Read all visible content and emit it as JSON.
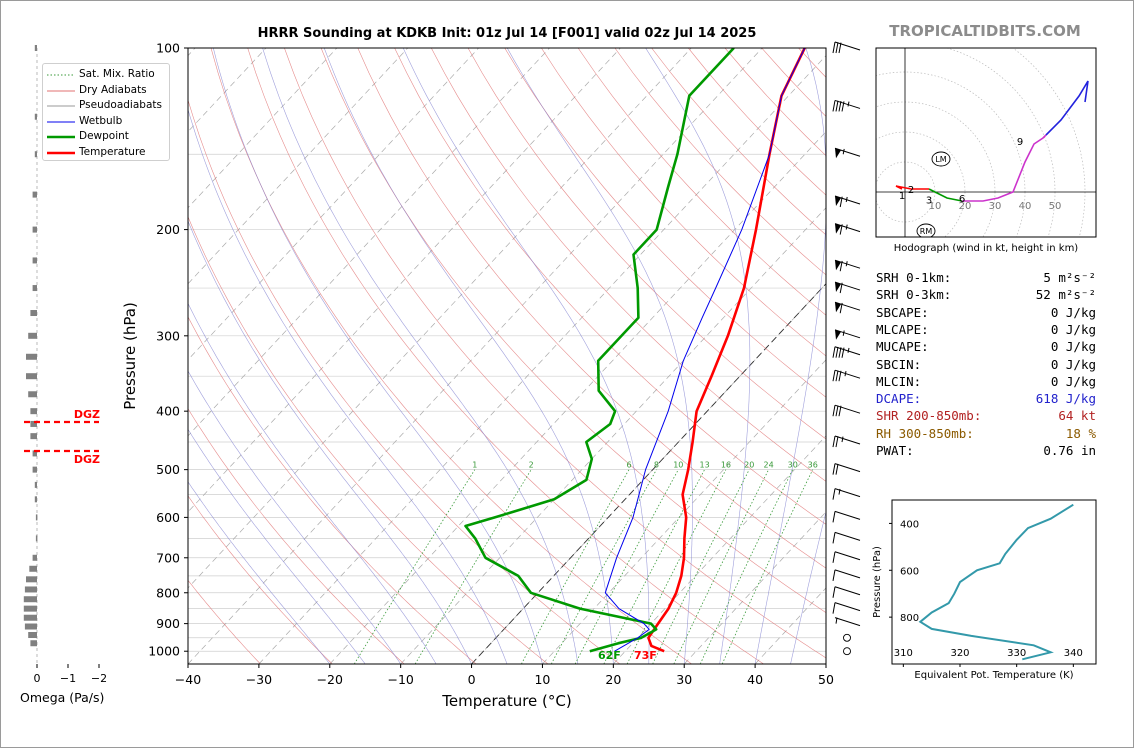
{
  "title": "HRRR Sounding at KDKB Init: 01z Jul 14 [F001] valid 02z Jul 14 2025",
  "brand": "TROPICALTIDBITS.COM",
  "colors": {
    "temperature": "#ff0000",
    "dewpoint": "#009900",
    "wetbulb": "#0000ee",
    "dry_adiabat": "#e07070",
    "pseudoadiabat": "#8080d0",
    "mixing_ratio": "#3a9a3a",
    "theta_e": "#3399aa",
    "hodo_low": "#ff0000",
    "hodo_mid": "#009900",
    "hodo_upper": "#cc33cc",
    "hodo_top": "#2222dd",
    "dgz": "#ff0000",
    "omega": "#808080"
  },
  "legend": [
    {
      "label": "Sat. Mix. Ratio",
      "style": "dotted",
      "color": "#3a9a3a"
    },
    {
      "label": "Dry Adiabats",
      "style": "thin",
      "color": "#e07070"
    },
    {
      "label": "Pseudoadiabats",
      "style": "thin",
      "color": "#9a9a9a"
    },
    {
      "label": "Wetbulb",
      "style": "thin",
      "color": "#0000ee"
    },
    {
      "label": "Dewpoint",
      "style": "thick",
      "color": "#009900"
    },
    {
      "label": "Temperature",
      "style": "thick",
      "color": "#ff0000"
    }
  ],
  "indices": [
    {
      "key": "SRH 0-1km:",
      "value": "5 m²s⁻²",
      "color": "#000000"
    },
    {
      "key": "SRH 0-3km:",
      "value": "52 m²s⁻²",
      "color": "#000000"
    },
    {
      "key": "SBCAPE:",
      "value": "0 J/kg",
      "color": "#000000"
    },
    {
      "key": "MLCAPE:",
      "value": "0 J/kg",
      "color": "#000000"
    },
    {
      "key": "MUCAPE:",
      "value": "0 J/kg",
      "color": "#000000"
    },
    {
      "key": "SBCIN:",
      "value": "0 J/kg",
      "color": "#000000"
    },
    {
      "key": "MLCIN:",
      "value": "0 J/kg",
      "color": "#000000"
    },
    {
      "key": "DCAPE:",
      "value": "618 J/kg",
      "color": "#2222cc"
    },
    {
      "key": "SHR 200-850mb:",
      "value": "64 kt",
      "color": "#b22222"
    },
    {
      "key": "RH 300-850mb:",
      "value": "18 %",
      "color": "#8b5a00"
    },
    {
      "key": "PWAT:",
      "value": "0.76 in",
      "color": "#000000"
    }
  ],
  "omega": {
    "xlabel": "Omega (Pa/s)",
    "ticks": [
      "0",
      "−1",
      "−2"
    ],
    "dgz_label": "DGZ"
  },
  "chart_data": [
    {
      "type": "skew-t",
      "title": "HRRR Sounding at KDKB Init: 01z Jul 14 [F001] valid 02z Jul 14 2025",
      "xlabel": "Temperature (°C)",
      "ylabel": "Pressure (hPa)",
      "xlim": [
        -40,
        50
      ],
      "ylim": [
        1050,
        100
      ],
      "x_ticks": [
        "−40",
        "−30",
        "−20",
        "−10",
        "0",
        "10",
        "20",
        "30",
        "40",
        "50"
      ],
      "y_ticks": [
        "100",
        "200",
        "300",
        "400",
        "500",
        "600",
        "700",
        "800",
        "900",
        "1000"
      ],
      "mixing_ratio_labels": [
        "1",
        "2",
        "6",
        "8",
        "10",
        "13",
        "16",
        "20",
        "24",
        "30",
        "36"
      ],
      "surface_labels": {
        "temperature": "73F",
        "dewpoint": "62F"
      },
      "series": [
        {
          "name": "Temperature",
          "points": [
            [
              1000,
              25.5
            ],
            [
              980,
              23
            ],
            [
              950,
              21.5
            ],
            [
              900,
              21
            ],
            [
              850,
              20.5
            ],
            [
              800,
              19.5
            ],
            [
              750,
              18
            ],
            [
              700,
              16
            ],
            [
              650,
              13.5
            ],
            [
              600,
              11
            ],
            [
              550,
              7.5
            ],
            [
              500,
              5
            ],
            [
              450,
              2
            ],
            [
              400,
              -1.5
            ],
            [
              350,
              -4
            ],
            [
              300,
              -7
            ],
            [
              250,
              -11
            ],
            [
              200,
              -17
            ],
            [
              150,
              -25
            ],
            [
              120,
              -31
            ],
            [
              100,
              -34
            ]
          ]
        },
        {
          "name": "Dewpoint",
          "points": [
            [
              1000,
              15
            ],
            [
              970,
              18
            ],
            [
              950,
              20.5
            ],
            [
              920,
              21.5
            ],
            [
              900,
              20
            ],
            [
              850,
              8
            ],
            [
              800,
              -1
            ],
            [
              750,
              -5
            ],
            [
              700,
              -12
            ],
            [
              650,
              -16
            ],
            [
              620,
              -19
            ],
            [
              600,
              -16
            ],
            [
              560,
              -10
            ],
            [
              520,
              -8
            ],
            [
              480,
              -10
            ],
            [
              450,
              -13
            ],
            [
              420,
              -12
            ],
            [
              400,
              -13
            ],
            [
              370,
              -18
            ],
            [
              330,
              -22
            ],
            [
              280,
              -22
            ],
            [
              250,
              -26
            ],
            [
              220,
              -31
            ],
            [
              200,
              -31
            ],
            [
              170,
              -35
            ],
            [
              150,
              -38
            ],
            [
              120,
              -44
            ],
            [
              100,
              -44
            ]
          ]
        },
        {
          "name": "Wetbulb",
          "points": [
            [
              1000,
              18.5
            ],
            [
              950,
              20
            ],
            [
              920,
              20.5
            ],
            [
              900,
              19
            ],
            [
              850,
              13.5
            ],
            [
              800,
              9.5
            ],
            [
              700,
              6.5
            ],
            [
              600,
              3.5
            ],
            [
              500,
              -1
            ],
            [
              400,
              -5.5
            ],
            [
              330,
              -10
            ],
            [
              280,
              -13
            ],
            [
              250,
              -15
            ],
            [
              200,
              -19
            ],
            [
              150,
              -25
            ],
            [
              120,
              -31
            ],
            [
              100,
              -34
            ]
          ]
        }
      ],
      "wind_barbs_kt": [
        {
          "p": 1000,
          "speed": 0
        },
        {
          "p": 950,
          "speed": 0
        },
        {
          "p": 900,
          "speed": 5
        },
        {
          "p": 850,
          "speed": 10
        },
        {
          "p": 800,
          "speed": 10
        },
        {
          "p": 750,
          "speed": 10
        },
        {
          "p": 700,
          "speed": 10
        },
        {
          "p": 650,
          "speed": 10
        },
        {
          "p": 600,
          "speed": 10
        },
        {
          "p": 550,
          "speed": 15
        },
        {
          "p": 500,
          "speed": 20
        },
        {
          "p": 450,
          "speed": 25
        },
        {
          "p": 400,
          "speed": 30
        },
        {
          "p": 350,
          "speed": 35
        },
        {
          "p": 320,
          "speed": 45
        },
        {
          "p": 300,
          "speed": 55
        },
        {
          "p": 270,
          "speed": 60
        },
        {
          "p": 250,
          "speed": 60
        },
        {
          "p": 230,
          "speed": 65
        },
        {
          "p": 200,
          "speed": 65
        },
        {
          "p": 180,
          "speed": 65
        },
        {
          "p": 150,
          "speed": 55
        },
        {
          "p": 125,
          "speed": 45
        },
        {
          "p": 100,
          "speed": 30
        }
      ]
    },
    {
      "type": "line",
      "title": "Hodograph (wind in kt, height in km)",
      "ring_labels": [
        "10",
        "20",
        "30",
        "40",
        "50"
      ],
      "height_labels": [
        "1",
        "2",
        "3",
        "6",
        "9"
      ],
      "markers": [
        "LM",
        "RM"
      ],
      "series": [
        {
          "name": "0-3 km",
          "points": [
            [
              -1,
              1
            ],
            [
              -3,
              2
            ],
            [
              2,
              1
            ],
            [
              8,
              1
            ]
          ]
        },
        {
          "name": "3-6 km",
          "points": [
            [
              8,
              1
            ],
            [
              14,
              -2
            ],
            [
              19,
              -3
            ]
          ]
        },
        {
          "name": "6-9 km",
          "points": [
            [
              19,
              -3
            ],
            [
              26,
              -3
            ],
            [
              31,
              -2
            ],
            [
              36,
              0
            ],
            [
              40,
              10
            ],
            [
              43,
              16
            ],
            [
              46,
              18
            ],
            [
              47,
              19
            ]
          ]
        },
        {
          "name": "9+ km",
          "points": [
            [
              47,
              19
            ],
            [
              52,
              24
            ],
            [
              58,
              32
            ],
            [
              61,
              37
            ],
            [
              60,
              30
            ]
          ]
        }
      ]
    },
    {
      "type": "line",
      "xlabel": "Equivalent Pot. Temperature (K)",
      "ylabel": "Pressure (hPa)",
      "xlim": [
        308,
        344
      ],
      "ylim": [
        1000,
        300
      ],
      "x_ticks": [
        "310",
        "320",
        "330",
        "340"
      ],
      "y_ticks": [
        "400",
        "600",
        "800"
      ],
      "series": [
        {
          "name": "Equivalent Pot. Temperature",
          "points": [
            [
              980,
              331
            ],
            [
              965,
              333.5
            ],
            [
              950,
              336
            ],
            [
              920,
              333
            ],
            [
              880,
              322
            ],
            [
              850,
              315
            ],
            [
              820,
              313
            ],
            [
              780,
              315
            ],
            [
              740,
              318
            ],
            [
              700,
              319
            ],
            [
              650,
              320
            ],
            [
              600,
              323
            ],
            [
              570,
              327
            ],
            [
              530,
              328
            ],
            [
              470,
              330
            ],
            [
              420,
              332
            ],
            [
              380,
              336
            ],
            [
              350,
              338
            ],
            [
              320,
              340
            ]
          ]
        }
      ]
    }
  ]
}
